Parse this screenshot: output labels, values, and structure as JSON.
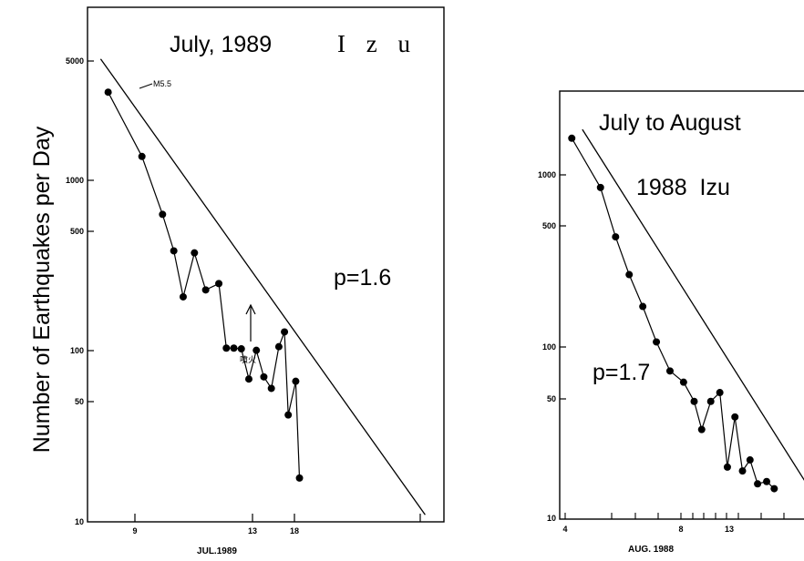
{
  "y_axis_label": "Number of Earthquakes per Day",
  "chart_data": [
    {
      "type": "scatter",
      "title_line1": "July, 1989",
      "title_line2": "I z u",
      "xlabel": "JUL.1989",
      "ylabel": "Number of Earthquakes per Day",
      "y_scale": "log",
      "ylim": [
        10,
        10000
      ],
      "xlim": [
        8,
        27
      ],
      "y_ticks": [
        "5000",
        "1000",
        "500",
        "100",
        "50",
        "10"
      ],
      "x_ticks": [
        "9",
        "13",
        "18"
      ],
      "annotation_p": "p=1.6",
      "annotation_m": "M5.5",
      "annotation_eruption": "噴火",
      "points": [
        {
          "x": 9.1,
          "y": 3200
        },
        {
          "x": 10.9,
          "y": 1350
        },
        {
          "x": 12.0,
          "y": 620
        },
        {
          "x": 12.6,
          "y": 380
        },
        {
          "x": 13.1,
          "y": 205
        },
        {
          "x": 13.7,
          "y": 370
        },
        {
          "x": 14.3,
          "y": 225
        },
        {
          "x": 15.0,
          "y": 245
        },
        {
          "x": 15.4,
          "y": 103
        },
        {
          "x": 15.8,
          "y": 103
        },
        {
          "x": 16.2,
          "y": 102
        },
        {
          "x": 16.6,
          "y": 68
        },
        {
          "x": 17.0,
          "y": 100
        },
        {
          "x": 17.4,
          "y": 70
        },
        {
          "x": 17.8,
          "y": 60
        },
        {
          "x": 18.2,
          "y": 105
        },
        {
          "x": 18.5,
          "y": 128
        },
        {
          "x": 18.7,
          "y": 42
        },
        {
          "x": 19.1,
          "y": 66
        },
        {
          "x": 19.3,
          "y": 18
        }
      ],
      "fit_line": [
        {
          "x": 8.7,
          "y": 5000
        },
        {
          "x": 26.0,
          "y": 11
        }
      ]
    },
    {
      "type": "scatter",
      "title_line1": "July to August",
      "title_line2": "1988  Izu",
      "xlabel": "AUG. 1988",
      "y_scale": "log",
      "ylim": [
        10,
        3000
      ],
      "xlim": [
        3.5,
        21
      ],
      "y_ticks": [
        "1000",
        "500",
        "100",
        "50",
        "10"
      ],
      "x_ticks": [
        "4",
        "8",
        "13"
      ],
      "annotation_p": "p=1.7",
      "points": [
        {
          "x": 4.3,
          "y": 1600
        },
        {
          "x": 6.2,
          "y": 830
        },
        {
          "x": 7.2,
          "y": 430
        },
        {
          "x": 8.1,
          "y": 260
        },
        {
          "x": 9.0,
          "y": 170
        },
        {
          "x": 9.9,
          "y": 106
        },
        {
          "x": 10.8,
          "y": 72
        },
        {
          "x": 11.7,
          "y": 62
        },
        {
          "x": 12.4,
          "y": 48
        },
        {
          "x": 12.9,
          "y": 33
        },
        {
          "x": 13.5,
          "y": 48
        },
        {
          "x": 14.1,
          "y": 54
        },
        {
          "x": 14.6,
          "y": 20
        },
        {
          "x": 15.1,
          "y": 39
        },
        {
          "x": 15.6,
          "y": 19
        },
        {
          "x": 16.1,
          "y": 22
        },
        {
          "x": 16.6,
          "y": 16
        },
        {
          "x": 17.2,
          "y": 16.5
        },
        {
          "x": 17.7,
          "y": 15
        }
      ],
      "fit_line": [
        {
          "x": 5.0,
          "y": 1800
        },
        {
          "x": 20.5,
          "y": 13
        }
      ]
    }
  ]
}
